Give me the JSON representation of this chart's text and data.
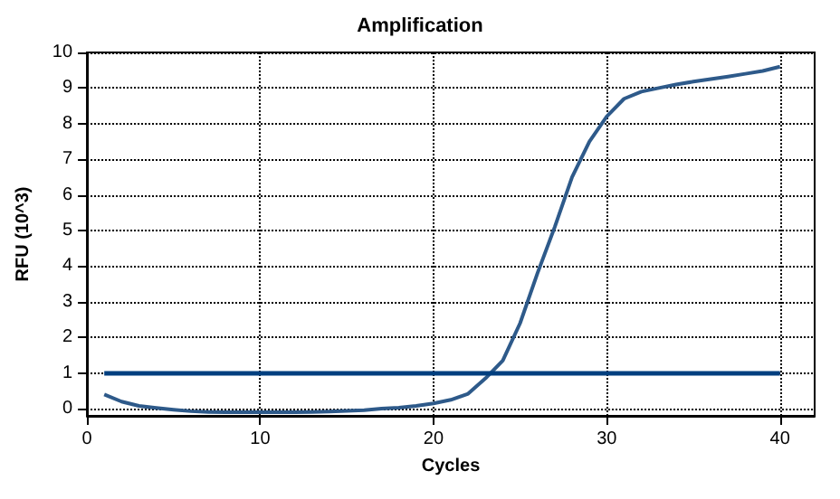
{
  "chart_data": {
    "type": "line",
    "title": "Amplification",
    "xlabel": "Cycles",
    "ylabel": "RFU (10^3)",
    "x": [
      1,
      2,
      3,
      4,
      5,
      6,
      7,
      8,
      9,
      10,
      11,
      12,
      13,
      14,
      15,
      16,
      17,
      18,
      19,
      20,
      21,
      22,
      23,
      24,
      25,
      26,
      27,
      28,
      29,
      30,
      31,
      32,
      33,
      34,
      35,
      36,
      37,
      38,
      39,
      40
    ],
    "series": [
      {
        "color": "#2e5a8a",
        "values": [
          0.4,
          0.2,
          0.08,
          0.02,
          -0.03,
          -0.07,
          -0.09,
          -0.1,
          -0.1,
          -0.1,
          -0.1,
          -0.1,
          -0.09,
          -0.08,
          -0.06,
          -0.04,
          0,
          0.03,
          0.08,
          0.15,
          0.25,
          0.42,
          0.85,
          1.35,
          2.4,
          3.8,
          5.1,
          6.5,
          7.5,
          8.2,
          8.7,
          8.9,
          9.0,
          9.1,
          9.18,
          9.25,
          9.32,
          9.4,
          9.48,
          9.6
        ]
      }
    ],
    "ref_lines": [
      {
        "axis": "y",
        "value": 1,
        "color": "#003f7f"
      }
    ],
    "xlim": [
      0,
      42
    ],
    "xticks": [
      0,
      10,
      20,
      30,
      40
    ],
    "ylim": [
      -0.2,
      10
    ],
    "yticks": [
      0,
      1,
      2,
      3,
      4,
      5,
      6,
      7,
      8,
      9,
      10
    ],
    "grid": true,
    "marker": "none",
    "line_style": "solid"
  }
}
